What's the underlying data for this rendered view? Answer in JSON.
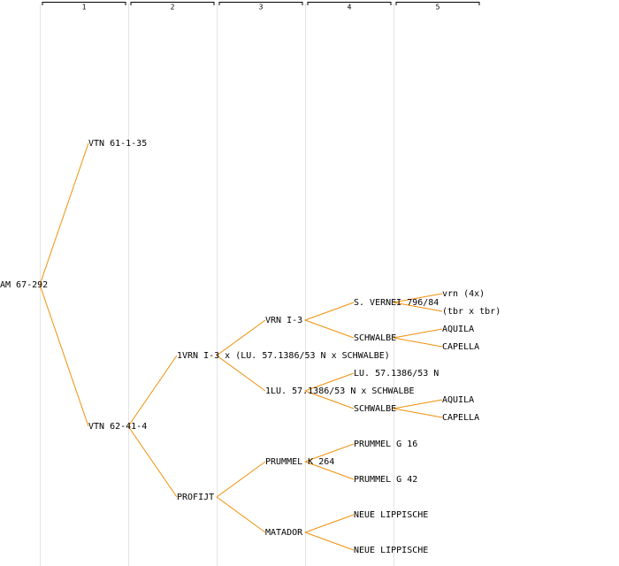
{
  "header": {
    "columns": [
      "1",
      "2",
      "3",
      "4",
      "5"
    ]
  },
  "nodes": [
    {
      "label": "AM 67-292"
    },
    {
      "label": "VTN 61-1-35"
    },
    {
      "label": "VTN 62-41-4"
    },
    {
      "label": "1VRN I-3 x (LU. 57.1386/53 N x SCHWALBE)"
    },
    {
      "label": "PROFIJT"
    },
    {
      "label": "VRN I-3"
    },
    {
      "label": "1LU. 57.1386/53 N x SCHWALBE"
    },
    {
      "label": "PRUMMEL K 264"
    },
    {
      "label": "MATADOR",
      "color": "#0000cc"
    },
    {
      "label": "S. VERNEI 796/84"
    },
    {
      "label": "SCHWALBE"
    },
    {
      "label": "LU. 57.1386/53 N"
    },
    {
      "label": "SCHWALBE"
    },
    {
      "label": "PRUMMEL G 16"
    },
    {
      "label": "PRUMMEL G 42"
    },
    {
      "label": "NEUE LIPPISCHE"
    },
    {
      "label": "NEUE LIPPISCHE"
    },
    {
      "label": "vrn (4x)"
    },
    {
      "label": "(tbr x tbr)"
    },
    {
      "label": "AQUILA"
    },
    {
      "label": "CAPELLA"
    },
    {
      "label": "AQUILA"
    },
    {
      "label": "CAPELLA"
    }
  ]
}
